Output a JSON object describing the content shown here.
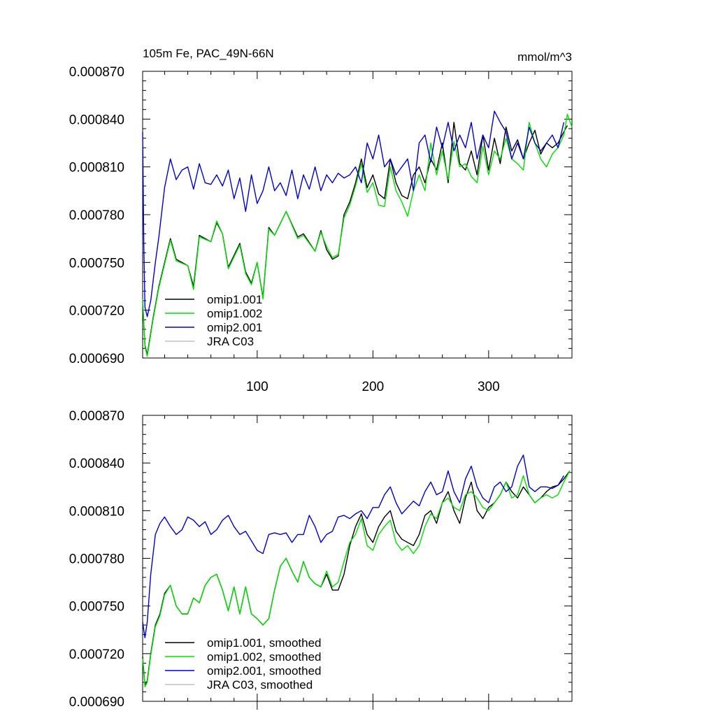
{
  "chart_data": [
    {
      "type": "line",
      "title": "105m Fe, PAC_49N-66N",
      "units": "mmol/m^3",
      "xlim": [
        1,
        372
      ],
      "ylim": [
        0.00069,
        0.00087
      ],
      "xticks": [
        100,
        200,
        300
      ],
      "xtick_labels": [
        "100",
        "200",
        "300"
      ],
      "yticks": [
        0.00069,
        0.00072,
        0.00075,
        0.00078,
        0.00081,
        0.00084,
        0.00087
      ],
      "ytick_labels": [
        "0.000690",
        "0.000720",
        "0.000750",
        "0.000780",
        "0.000810",
        "0.000840",
        "0.000870"
      ],
      "legend_position": "lower-left",
      "series": [
        {
          "name": "omip1.001",
          "color": "#000000",
          "x": [
            1,
            3,
            5,
            10,
            15,
            25,
            30,
            40,
            45,
            50,
            60,
            65,
            70,
            75,
            85,
            90,
            95,
            100,
            105,
            110,
            115,
            125,
            135,
            140,
            150,
            155,
            160,
            165,
            170,
            175,
            180,
            185,
            190,
            195,
            200,
            205,
            210,
            215,
            220,
            225,
            230,
            235,
            240,
            245,
            250,
            255,
            260,
            265,
            270,
            275,
            280,
            285,
            290,
            295,
            300,
            305,
            310,
            315,
            320,
            325,
            330,
            335,
            340,
            345,
            350,
            355,
            360,
            365,
            368
          ],
          "values": [
            0.000726,
            0.000698,
            0.000692,
            0.000715,
            0.000735,
            0.000765,
            0.000752,
            0.000748,
            0.000735,
            0.000767,
            0.000763,
            0.000775,
            0.000768,
            0.000747,
            0.000762,
            0.000744,
            0.000737,
            0.00075,
            0.000728,
            0.000772,
            0.000767,
            0.000782,
            0.000766,
            0.000768,
            0.000757,
            0.00077,
            0.000758,
            0.000752,
            0.000754,
            0.00078,
            0.000788,
            0.0008,
            0.000815,
            0.000797,
            0.000805,
            0.000793,
            0.00079,
            0.000815,
            0.0008,
            0.000792,
            0.00079,
            0.000805,
            0.00081,
            0.0008,
            0.000815,
            0.000808,
            0.000825,
            0.0008,
            0.000838,
            0.000812,
            0.000808,
            0.00082,
            0.000805,
            0.00083,
            0.000808,
            0.000828,
            0.000812,
            0.000835,
            0.00082,
            0.000827,
            0.000815,
            0.000825,
            0.000833,
            0.000818,
            0.000825,
            0.000822,
            0.000825,
            0.000832,
            0.000836
          ]
        },
        {
          "name": "omip1.002",
          "color": "#00e000",
          "x": [
            1,
            3,
            5,
            10,
            15,
            25,
            30,
            40,
            45,
            50,
            60,
            65,
            70,
            75,
            85,
            90,
            95,
            100,
            105,
            110,
            115,
            125,
            135,
            140,
            150,
            155,
            160,
            165,
            170,
            175,
            180,
            185,
            190,
            195,
            200,
            205,
            210,
            215,
            220,
            225,
            230,
            235,
            240,
            245,
            250,
            255,
            260,
            265,
            270,
            275,
            280,
            285,
            290,
            295,
            300,
            305,
            310,
            315,
            320,
            325,
            330,
            335,
            340,
            345,
            350,
            355,
            360,
            365,
            368,
            372
          ],
          "values": [
            0.000727,
            0.000697,
            0.000691,
            0.000714,
            0.000734,
            0.000764,
            0.000751,
            0.000748,
            0.000733,
            0.000766,
            0.000763,
            0.000776,
            0.000768,
            0.000746,
            0.000761,
            0.000743,
            0.000736,
            0.00075,
            0.000727,
            0.000771,
            0.000767,
            0.000782,
            0.000765,
            0.000767,
            0.000757,
            0.000769,
            0.00076,
            0.000753,
            0.000755,
            0.000778,
            0.000786,
            0.000798,
            0.000812,
            0.000794,
            0.0008,
            0.000786,
            0.000785,
            0.00081,
            0.000795,
            0.000788,
            0.000779,
            0.000795,
            0.000805,
            0.000795,
            0.000825,
            0.000805,
            0.00082,
            0.000802,
            0.000826,
            0.00081,
            0.000812,
            0.000804,
            0.0008,
            0.000823,
            0.000805,
            0.00082,
            0.000815,
            0.000828,
            0.000815,
            0.000812,
            0.000808,
            0.000838,
            0.000825,
            0.000815,
            0.00081,
            0.000818,
            0.000822,
            0.00083,
            0.000843,
            0.000835
          ]
        },
        {
          "name": "omip2.001",
          "color": "#0000d0",
          "x": [
            1,
            2,
            3,
            5,
            8,
            12,
            15,
            20,
            25,
            30,
            35,
            40,
            45,
            50,
            55,
            60,
            65,
            70,
            75,
            80,
            85,
            90,
            95,
            100,
            105,
            110,
            115,
            120,
            125,
            130,
            135,
            140,
            145,
            150,
            155,
            160,
            165,
            170,
            175,
            180,
            185,
            190,
            195,
            200,
            205,
            210,
            215,
            220,
            225,
            230,
            235,
            240,
            245,
            250,
            255,
            260,
            265,
            270,
            275,
            280,
            285,
            290,
            295,
            300,
            305,
            310,
            315,
            320,
            325,
            330,
            335,
            340,
            345,
            350,
            355,
            360,
            365
          ],
          "values": [
            0.000832,
            0.00076,
            0.000722,
            0.000716,
            0.000726,
            0.00075,
            0.000766,
            0.000797,
            0.000815,
            0.000802,
            0.000808,
            0.00081,
            0.000796,
            0.000812,
            0.0008,
            0.000799,
            0.000805,
            0.000798,
            0.000808,
            0.00079,
            0.000803,
            0.000782,
            0.000805,
            0.000787,
            0.000795,
            0.00081,
            0.000795,
            0.0008,
            0.000792,
            0.000808,
            0.00079,
            0.000805,
            0.000796,
            0.00081,
            0.000795,
            0.000805,
            0.0008,
            0.000806,
            0.000803,
            0.000805,
            0.00081,
            0.0008,
            0.000825,
            0.000815,
            0.00083,
            0.00081,
            0.000815,
            0.000805,
            0.00081,
            0.000815,
            0.000795,
            0.000825,
            0.00083,
            0.000813,
            0.000835,
            0.000822,
            0.000838,
            0.00082,
            0.00083,
            0.000822,
            0.000838,
            0.000815,
            0.00083,
            0.000822,
            0.000845,
            0.000838,
            0.000832,
            0.000815,
            0.000825,
            0.000815,
            0.000835,
            0.000825,
            0.00082,
            0.000825,
            0.00083,
            0.000822,
            0.000838
          ]
        },
        {
          "name": "JRA C03",
          "color": "#c0c0c0",
          "x": [],
          "values": []
        }
      ]
    },
    {
      "type": "line",
      "title": "",
      "xlim": [
        1,
        372
      ],
      "ylim": [
        0.00069,
        0.00087
      ],
      "yticks": [
        0.00069,
        0.00072,
        0.00075,
        0.00078,
        0.00081,
        0.00084,
        0.00087
      ],
      "ytick_labels": [
        "0.000690",
        "0.000720",
        "0.000750",
        "0.000780",
        "0.000810",
        "0.000840",
        "0.000870"
      ],
      "legend_position": "lower-left",
      "series": [
        {
          "name": "omip1.001, smoothed",
          "color": "#000000",
          "x": [
            1,
            3,
            5,
            8,
            12,
            16,
            20,
            25,
            30,
            35,
            40,
            45,
            50,
            55,
            60,
            65,
            70,
            75,
            80,
            85,
            90,
            95,
            100,
            105,
            110,
            115,
            120,
            125,
            130,
            135,
            140,
            145,
            150,
            155,
            160,
            165,
            170,
            175,
            180,
            185,
            190,
            195,
            200,
            205,
            210,
            215,
            220,
            225,
            230,
            235,
            240,
            245,
            250,
            255,
            260,
            265,
            270,
            275,
            280,
            285,
            290,
            295,
            300,
            305,
            310,
            315,
            320,
            325,
            330,
            335,
            340,
            345,
            350,
            355,
            360,
            365,
            370
          ],
          "values": [
            0.000718,
            0.0007,
            0.000703,
            0.00072,
            0.000738,
            0.000745,
            0.000758,
            0.000763,
            0.00075,
            0.000745,
            0.000745,
            0.000755,
            0.000752,
            0.000763,
            0.000768,
            0.00077,
            0.00076,
            0.000747,
            0.000762,
            0.000745,
            0.000762,
            0.000745,
            0.000742,
            0.000738,
            0.000742,
            0.00076,
            0.000775,
            0.00078,
            0.000772,
            0.000765,
            0.000778,
            0.000768,
            0.000764,
            0.000762,
            0.00077,
            0.00076,
            0.00076,
            0.00077,
            0.000788,
            0.0008,
            0.000808,
            0.000795,
            0.00079,
            0.0008,
            0.000806,
            0.00081,
            0.000797,
            0.000792,
            0.00079,
            0.000788,
            0.000795,
            0.000807,
            0.00081,
            0.000802,
            0.000815,
            0.000822,
            0.00081,
            0.000802,
            0.000818,
            0.000828,
            0.00081,
            0.000805,
            0.000812,
            0.000815,
            0.00082,
            0.000828,
            0.000822,
            0.000818,
            0.000825,
            0.00082,
            0.000815,
            0.000818,
            0.000822,
            0.000825,
            0.000826,
            0.00083,
            0.000835
          ]
        },
        {
          "name": "omip1.002, smoothed",
          "color": "#00e000",
          "x": [
            1,
            3,
            5,
            8,
            12,
            16,
            20,
            25,
            30,
            35,
            40,
            45,
            50,
            55,
            60,
            65,
            70,
            75,
            80,
            85,
            90,
            95,
            100,
            105,
            110,
            115,
            120,
            125,
            130,
            135,
            140,
            145,
            150,
            155,
            160,
            165,
            170,
            175,
            180,
            185,
            190,
            195,
            200,
            205,
            210,
            215,
            220,
            225,
            230,
            235,
            240,
            245,
            250,
            255,
            260,
            265,
            270,
            275,
            280,
            285,
            290,
            295,
            300,
            305,
            310,
            315,
            320,
            325,
            330,
            335,
            340,
            345,
            350,
            355,
            360,
            365,
            370
          ],
          "values": [
            0.000717,
            0.000699,
            0.000702,
            0.000719,
            0.000737,
            0.000744,
            0.000757,
            0.000763,
            0.00075,
            0.000745,
            0.000745,
            0.000755,
            0.000752,
            0.000763,
            0.000768,
            0.00077,
            0.00076,
            0.000747,
            0.000762,
            0.000745,
            0.000762,
            0.000745,
            0.000742,
            0.000738,
            0.000742,
            0.00076,
            0.000775,
            0.00078,
            0.000772,
            0.000765,
            0.000778,
            0.000768,
            0.000764,
            0.000762,
            0.000772,
            0.000762,
            0.000765,
            0.000778,
            0.00079,
            0.000795,
            0.000805,
            0.000788,
            0.000785,
            0.000795,
            0.0008,
            0.000804,
            0.00079,
            0.000785,
            0.000788,
            0.000783,
            0.000788,
            0.0008,
            0.000808,
            0.000805,
            0.000815,
            0.000818,
            0.000812,
            0.00081,
            0.00082,
            0.000822,
            0.000818,
            0.000812,
            0.00081,
            0.000815,
            0.00082,
            0.000828,
            0.000818,
            0.00082,
            0.000832,
            0.00082,
            0.000815,
            0.000818,
            0.00082,
            0.000818,
            0.00082,
            0.000828,
            0.000835
          ]
        },
        {
          "name": "omip2.001, smoothed",
          "color": "#0000d0",
          "x": [
            1,
            3,
            5,
            8,
            12,
            16,
            20,
            25,
            30,
            35,
            40,
            45,
            50,
            55,
            60,
            65,
            70,
            75,
            80,
            85,
            90,
            95,
            100,
            105,
            110,
            115,
            120,
            125,
            130,
            135,
            140,
            145,
            150,
            155,
            160,
            165,
            170,
            175,
            180,
            185,
            190,
            195,
            200,
            205,
            210,
            215,
            220,
            225,
            230,
            235,
            240,
            245,
            250,
            255,
            260,
            265,
            270,
            275,
            280,
            285,
            290,
            295,
            300,
            305,
            310,
            315,
            320,
            325,
            330,
            335,
            340,
            345,
            350,
            355,
            360,
            365
          ],
          "values": [
            0.00074,
            0.00073,
            0.00074,
            0.00077,
            0.000795,
            0.000802,
            0.000806,
            0.0008,
            0.000795,
            0.000798,
            0.000806,
            0.000804,
            0.0008,
            0.000803,
            0.000795,
            0.000798,
            0.000804,
            0.000807,
            0.0008,
            0.000795,
            0.000797,
            0.000791,
            0.000785,
            0.000783,
            0.000795,
            0.000796,
            0.000795,
            0.000796,
            0.00079,
            0.000795,
            0.000795,
            0.000807,
            0.0008,
            0.00079,
            0.000795,
            0.000797,
            0.000806,
            0.000807,
            0.000805,
            0.000808,
            0.00081,
            0.000805,
            0.000812,
            0.000812,
            0.00082,
            0.000825,
            0.000815,
            0.000808,
            0.000812,
            0.000816,
            0.000813,
            0.000822,
            0.000828,
            0.00082,
            0.000822,
            0.000835,
            0.000822,
            0.000815,
            0.00083,
            0.000838,
            0.000825,
            0.000818,
            0.000815,
            0.000825,
            0.000828,
            0.000822,
            0.000825,
            0.000838,
            0.000845,
            0.000825,
            0.000822,
            0.000825,
            0.000825,
            0.000824,
            0.000826,
            0.000832
          ]
        },
        {
          "name": "JRA C03, smoothed",
          "color": "#c0c0c0",
          "x": [],
          "values": []
        }
      ]
    }
  ]
}
